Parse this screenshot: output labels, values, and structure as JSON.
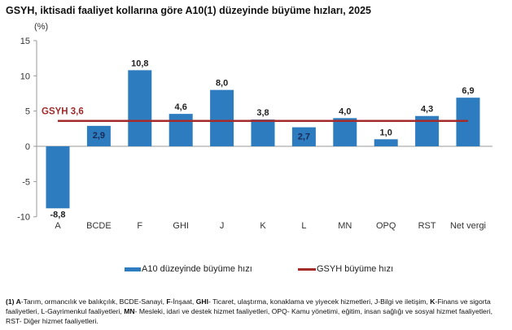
{
  "title": "GSYH, iktisadi faaliyet kollarına göre A10(1) düzeyinde büyüme hızları, 2025",
  "unit_label": "(%)",
  "colors": {
    "bar": "#2e7cc0",
    "gdp_line": "#a52a2a",
    "gdp_label": "#a52a2a",
    "axis": "#999999"
  },
  "chart_data": {
    "type": "bar",
    "title": "GSYH, iktisadi faaliyet kollarına göre A10(1) düzeyinde büyüme hızları, 2025",
    "xlabel": "",
    "ylabel": "(%)",
    "ylim": [
      -10,
      15
    ],
    "yticks": [
      15,
      10,
      5,
      0,
      -5,
      -10
    ],
    "grid": false,
    "legend_position": "bottom",
    "categories": [
      "A",
      "BCDE",
      "F",
      "GHI",
      "J",
      "K",
      "L",
      "MN",
      "OPQ",
      "RST",
      "Net vergi"
    ],
    "series": [
      {
        "name": "A10 düzeyinde büyüme hızı",
        "type": "bar",
        "values": [
          -8.8,
          2.9,
          10.8,
          4.6,
          8.0,
          3.8,
          2.7,
          4.0,
          1.0,
          4.3,
          6.9
        ]
      },
      {
        "name": "GSYH büyüme hızı",
        "type": "line",
        "values": [
          3.6,
          3.6,
          3.6,
          3.6,
          3.6,
          3.6,
          3.6,
          3.6,
          3.6,
          3.6,
          3.6
        ]
      }
    ],
    "data_labels": [
      "-8,8",
      "2,9",
      "10,8",
      "4,6",
      "8,0",
      "3,8",
      "2,7",
      "4,0",
      "1,0",
      "4,3",
      "6,9"
    ],
    "annotations": [
      {
        "text": "GSYH 3,6",
        "value": 3.6
      }
    ]
  },
  "legend": {
    "bar_label": "A10 düzeyinde büyüme hızı",
    "line_label": "GSYH büyüme hızı"
  },
  "footnote": {
    "parts": [
      {
        "b": true,
        "t": "(1) A"
      },
      {
        "b": false,
        "t": "-Tarım, ormancılık ve balıkçılık, "
      },
      {
        "b": false,
        "t": "BCDE-Sanayi, "
      },
      {
        "b": true,
        "t": "F"
      },
      {
        "b": false,
        "t": "-İnşaat, "
      },
      {
        "b": true,
        "t": "GHI"
      },
      {
        "b": false,
        "t": "- Ticaret, ulaştırma, konaklama ve yiyecek hizmetleri, "
      },
      {
        "b": false,
        "t": "J-Bilgi ve iletişim, "
      },
      {
        "b": true,
        "t": "K"
      },
      {
        "b": false,
        "t": "-Finans ve sigorta faaliyetleri, "
      },
      {
        "b": false,
        "t": "L-Gayrimenkul faaliyetleri, "
      },
      {
        "b": true,
        "t": "MN"
      },
      {
        "b": false,
        "t": "- Mesleki, idari ve destek hizmet faaliyetleri, "
      },
      {
        "b": false,
        "t": "OPQ- Kamu yönetimi, eğitim, insan sağlığı ve sosyal hizmet faaliyetleri, "
      },
      {
        "b": false,
        "t": "RST- Diğer hizmet faaliyetleri."
      }
    ]
  }
}
